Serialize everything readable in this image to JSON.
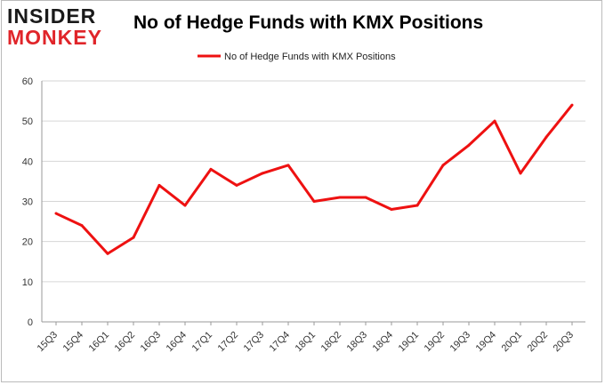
{
  "logo": {
    "line1": "INSIDER",
    "line2": "MONKEY",
    "colors": {
      "dark": "#1a1a1a",
      "accent": "#e0252a"
    }
  },
  "chart_data": {
    "type": "line",
    "title": "No of Hedge Funds with KMX Positions",
    "xlabel": "",
    "ylabel": "",
    "categories": [
      "15Q3",
      "15Q4",
      "16Q1",
      "16Q2",
      "16Q3",
      "16Q4",
      "17Q1",
      "17Q2",
      "17Q3",
      "17Q4",
      "18Q1",
      "18Q2",
      "18Q3",
      "18Q4",
      "19Q1",
      "19Q2",
      "19Q3",
      "19Q4",
      "20Q1",
      "20Q2",
      "20Q3"
    ],
    "series": [
      {
        "name": "No of Hedge Funds with KMX Positions",
        "values": [
          27,
          24,
          17,
          21,
          34,
          29,
          38,
          34,
          37,
          39,
          30,
          31,
          31,
          28,
          29,
          39,
          44,
          50,
          37,
          46,
          54
        ],
        "color": "#ee1111"
      }
    ],
    "ylim": [
      0,
      60
    ],
    "yticks": [
      0,
      10,
      20,
      30,
      40,
      50,
      60
    ],
    "grid": true,
    "legend": "top-center"
  }
}
